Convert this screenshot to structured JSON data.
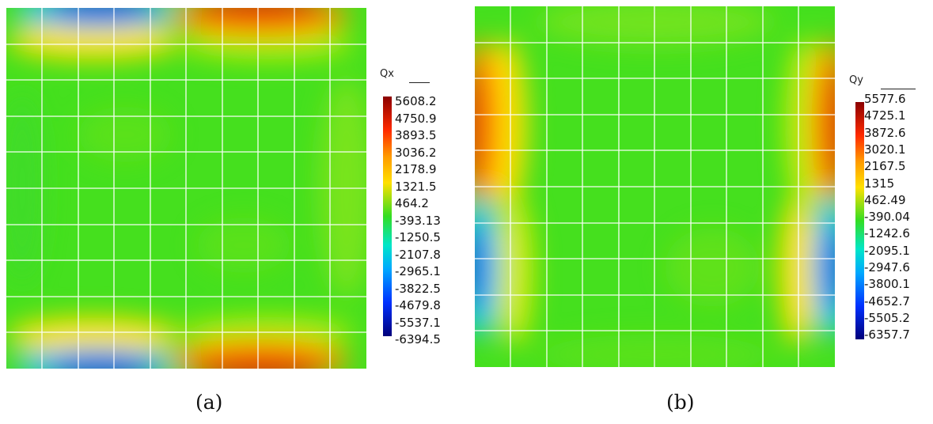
{
  "panels": [
    {
      "caption": "(a)",
      "legend": {
        "title": "Qx",
        "ticks": [
          "5608.2",
          "4750.9",
          "3893.5",
          "3036.2",
          "2178.9",
          "1321.5",
          "464.2",
          "-393.13",
          "-1250.5",
          "-2107.8",
          "-2965.1",
          "-3822.5",
          "-4679.8",
          "-5537.1",
          "-6394.5"
        ]
      },
      "field": "Qx",
      "hotspots": "top and bottom edges: negative (blue) on left half, positive (red) on right half"
    },
    {
      "caption": "(b)",
      "legend": {
        "title": "Qy",
        "ticks": [
          "5577.6",
          "4725.1",
          "3872.6",
          "3020.1",
          "2167.5",
          "1315",
          "462.49",
          "-390.04",
          "-1242.6",
          "-2095.1",
          "-2947.6",
          "-3800.1",
          "-4652.7",
          "-5505.2",
          "-6357.7"
        ]
      },
      "field": "Qy",
      "hotspots": "left and right edges: positive (red) on upper half, negative (blue) on lower half"
    }
  ],
  "colors": {
    "max": "#8b0000",
    "high": "#ff2a00",
    "mid_high": "#ffd000",
    "neutral": "#33dd22",
    "mid_low": "#00d8f0",
    "low": "#0030ff",
    "min": "#00007a",
    "grid": "#ffffff"
  }
}
